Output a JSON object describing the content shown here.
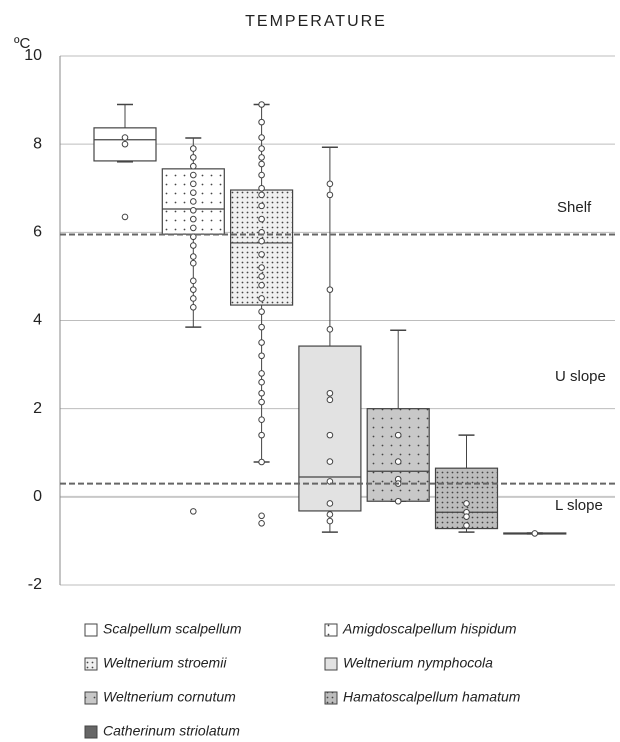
{
  "chart_data": {
    "type": "box",
    "title": "TEMPERATURE",
    "y_label": "ºC",
    "ylim": [
      -2,
      10
    ],
    "yticks": [
      -2,
      0,
      2,
      4,
      6,
      8,
      10
    ],
    "grid": true,
    "hlines": [
      5.95,
      0.3
    ],
    "annotations": [
      "Shelf",
      "U slope",
      "L slope"
    ],
    "series": [
      {
        "name": "Scalpellum scalpellum",
        "color": "#ffffff",
        "pattern": "none",
        "min": 7.6,
        "q1": 7.62,
        "median": 8.1,
        "q3": 8.37,
        "max": 8.9,
        "points": [
          8.15,
          8.0,
          6.35
        ]
      },
      {
        "name": "Amigdoscalpellum hispidum",
        "color": "#ffffff",
        "pattern": "sparse",
        "min": 3.85,
        "q1": 5.96,
        "median": 6.53,
        "q3": 7.44,
        "max": 8.14,
        "points": [
          7.9,
          7.7,
          7.5,
          7.3,
          7.1,
          6.9,
          6.7,
          6.5,
          6.3,
          6.1,
          5.9,
          5.7,
          5.45,
          5.3,
          4.9,
          4.7,
          4.5,
          4.3,
          -0.33
        ]
      },
      {
        "name": "Weltnerium stroemii",
        "color": "#f0f0f0",
        "pattern": "dense",
        "min": 0.79,
        "q1": 4.35,
        "median": 5.76,
        "q3": 6.96,
        "max": 8.9,
        "points": [
          8.9,
          8.5,
          8.15,
          7.9,
          7.7,
          7.55,
          7.3,
          7.0,
          6.85,
          6.6,
          6.3,
          6.0,
          5.8,
          5.5,
          5.2,
          5.0,
          4.8,
          4.5,
          4.2,
          3.85,
          3.5,
          3.2,
          2.8,
          2.6,
          2.35,
          2.15,
          1.75,
          1.4,
          0.79,
          -0.43,
          -0.6
        ]
      },
      {
        "name": "Weltnerium nymphocola",
        "color": "#e2e2e2",
        "pattern": "none",
        "min": -0.8,
        "q1": -0.32,
        "median": 0.45,
        "q3": 3.42,
        "max": 7.93,
        "points": [
          7.1,
          6.85,
          4.7,
          3.8,
          2.35,
          2.2,
          1.4,
          0.8,
          0.35,
          -0.15,
          -0.4,
          -0.55
        ]
      },
      {
        "name": "Weltnerium cornutum",
        "color": "#c8c8c8",
        "pattern": "sparse",
        "min": -0.1,
        "q1": -0.1,
        "median": 0.58,
        "q3": 2.0,
        "max": 3.78,
        "points": [
          1.4,
          0.8,
          0.4,
          0.3,
          -0.1
        ]
      },
      {
        "name": "Hamatoscalpellum hamatum",
        "color": "#bdbdbd",
        "pattern": "dense",
        "min": -0.8,
        "q1": -0.72,
        "median": -0.35,
        "q3": 0.65,
        "max": 1.4,
        "points": [
          -0.15,
          -0.35,
          -0.45,
          -0.65
        ]
      },
      {
        "name": "Catherinum striolatum",
        "color": "#666666",
        "pattern": "none",
        "min": -0.84,
        "q1": -0.84,
        "median": -0.83,
        "q3": -0.82,
        "max": -0.82,
        "points": [
          -0.83
        ]
      }
    ]
  }
}
